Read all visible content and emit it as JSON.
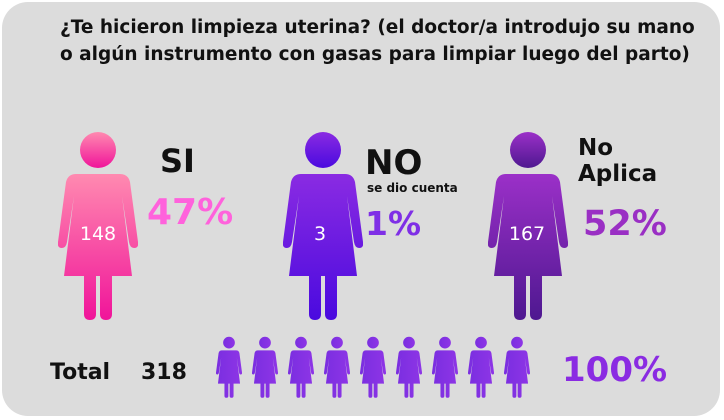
{
  "title": "¿Te hicieron limpieza uterina? (el doctor/a introdujo su mano o algún instrumento con gasas para limpiar luego del parto)",
  "categories": [
    {
      "label": "SI",
      "sublabel": "",
      "count": "148",
      "percent": "47%",
      "color": "#ff5fd6"
    },
    {
      "label": "NO",
      "sublabel": "se dio cuenta",
      "count": "3",
      "percent": "1%",
      "color": "#7d2ee8"
    },
    {
      "label": "No Aplica",
      "sublabel": "",
      "count": "167",
      "percent": "52%",
      "color": "#9a2fc4"
    }
  ],
  "total": {
    "label": "Total",
    "value": "318",
    "percent": "100%",
    "color": "#8a2be2"
  },
  "chart_data": {
    "type": "pictogram",
    "title": "¿Te hicieron limpieza uterina? (el doctor/a introdujo su mano o algún instrumento con gasas para limpiar luego del parto)",
    "categories": [
      "SI",
      "NO (se dio cuenta)",
      "No Aplica"
    ],
    "values": [
      148,
      3,
      167
    ],
    "percentages": [
      47,
      1,
      52
    ],
    "total": 318,
    "total_percent": 100
  }
}
